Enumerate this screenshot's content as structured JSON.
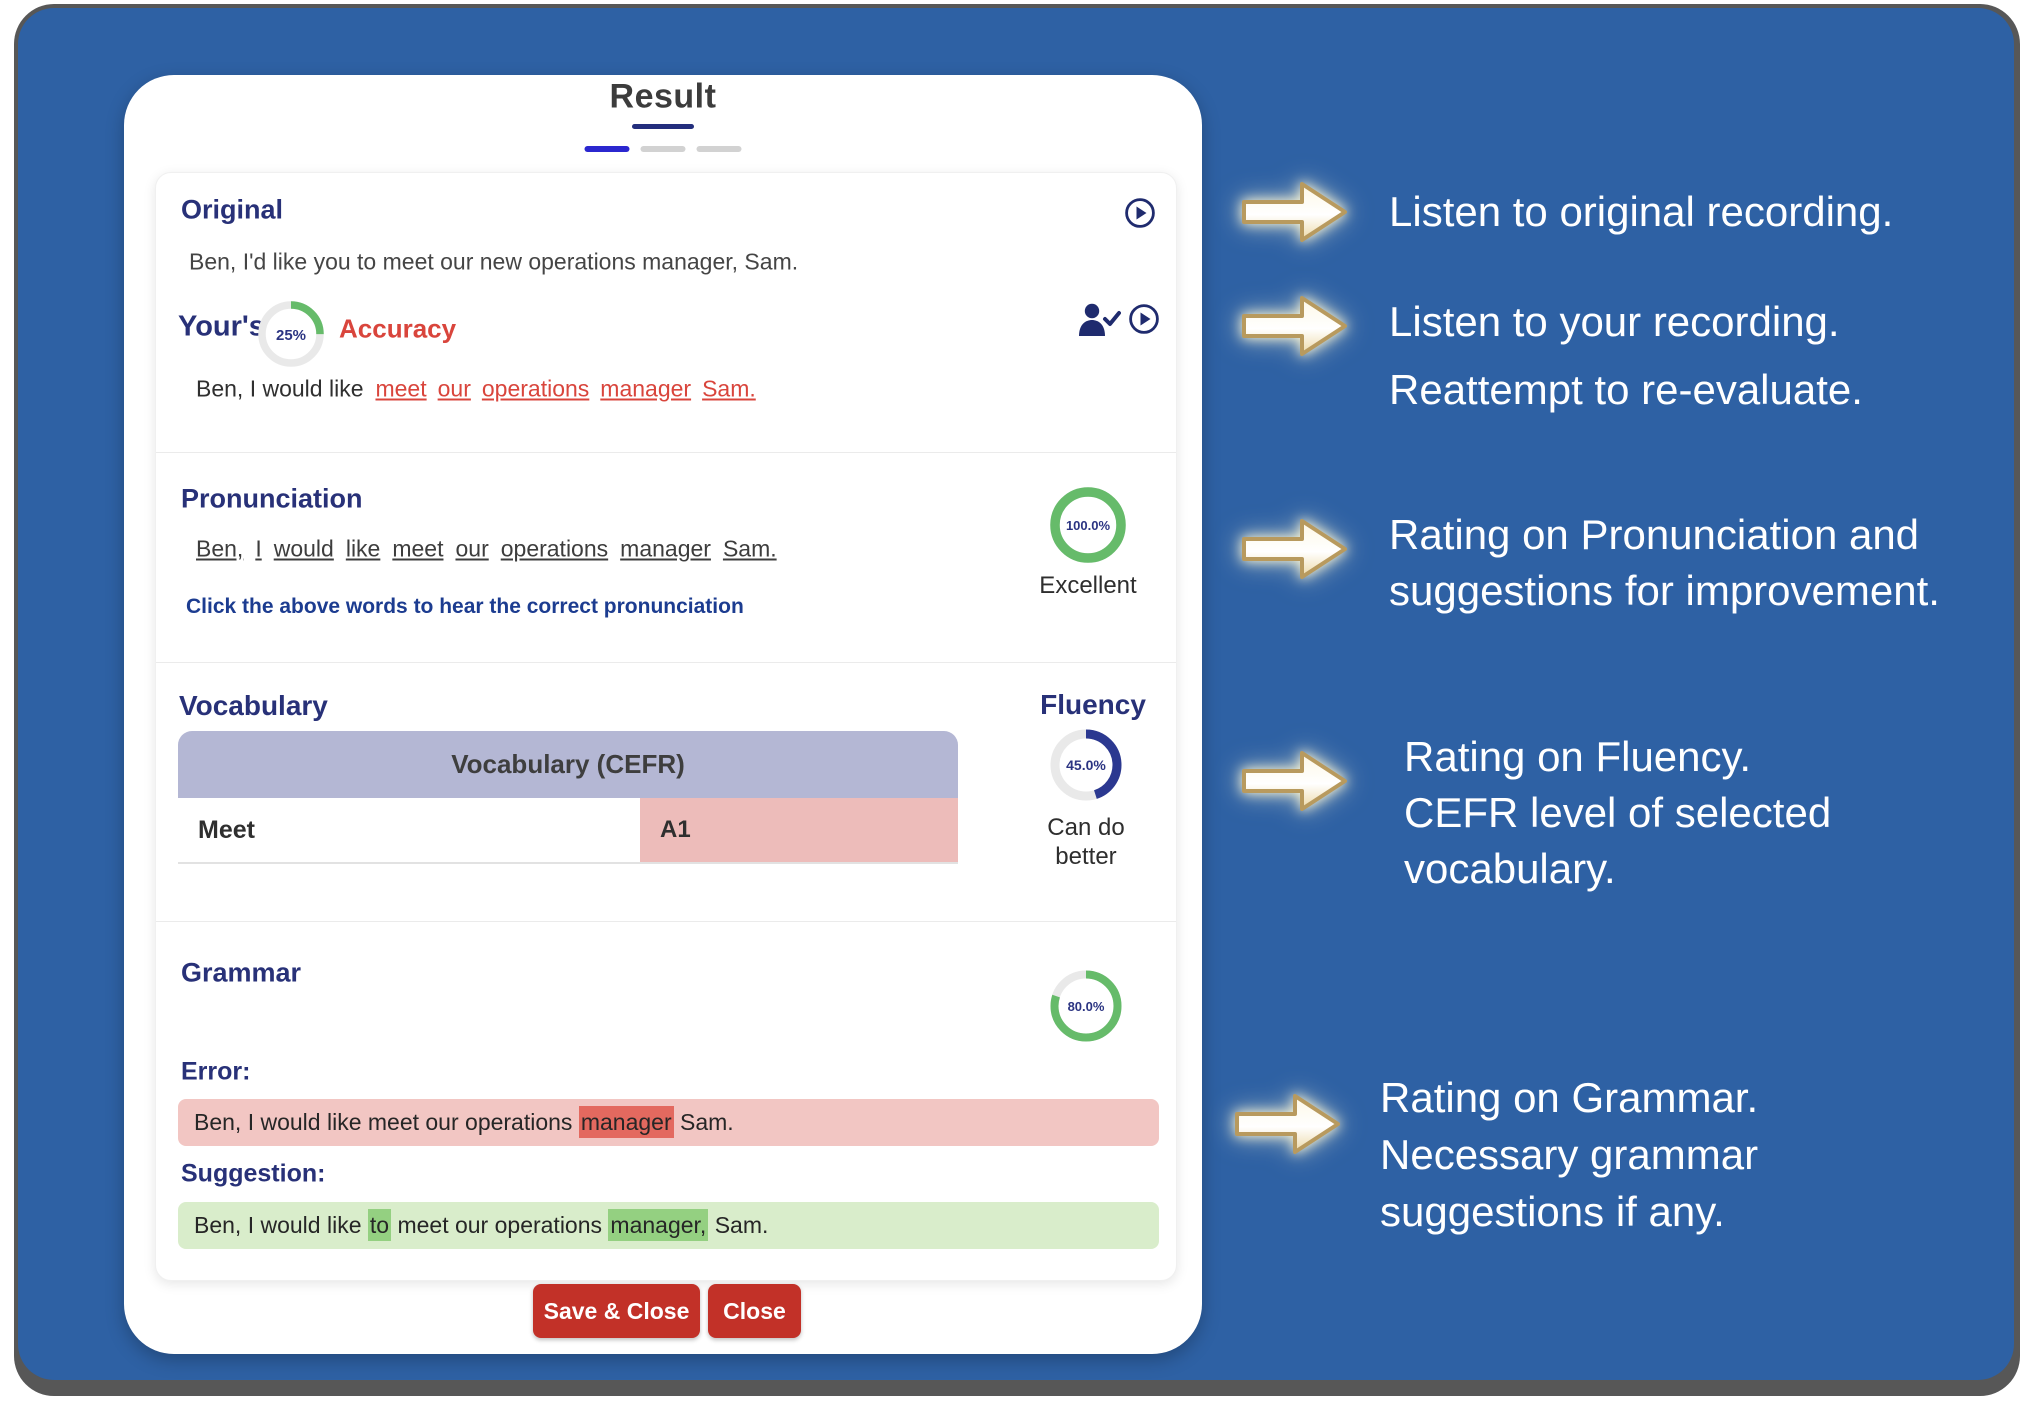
{
  "window": {
    "title": "Result"
  },
  "colors": {
    "panel_blue": "#2e61a4",
    "heading_navy": "#283178",
    "accent_red": "#d9453c",
    "ring_green": "#66bb6a",
    "ring_navy": "#2b3890",
    "table_header_bg": "#b4b7d4",
    "level_cell_bg": "#edbcba",
    "error_box_bg": "#f2c6c3",
    "error_highlight": "#e3695f",
    "suggestion_box_bg": "#d9edcb",
    "suggestion_highlight": "#94d081",
    "button_red": "#c23128"
  },
  "card": {
    "original": {
      "heading": "Original",
      "sentence": "Ben, I'd like you to meet our new operations manager, Sam."
    },
    "yours": {
      "heading": "Your's",
      "accuracy_label": "Accuracy",
      "ring_label": "25%",
      "percent": 25,
      "sentence_prefix": "Ben, I would like",
      "error_words": [
        "meet",
        "our",
        "operations",
        "manager",
        "Sam."
      ]
    },
    "pronunciation": {
      "heading": "Pronunciation",
      "words": [
        "Ben,",
        "I",
        "would",
        "like",
        "meet",
        "our",
        "operations",
        "manager",
        "Sam."
      ],
      "note": "Click the above words to hear the correct pronunciation",
      "percent": 100,
      "ring_label": "100.0%",
      "caption": "Excellent"
    },
    "vocabulary": {
      "heading": "Vocabulary",
      "table_header": "Vocabulary (CEFR)",
      "rows": [
        {
          "word": "Meet",
          "level": "A1"
        }
      ]
    },
    "fluency": {
      "heading": "Fluency",
      "percent": 45,
      "ring_label": "45.0%",
      "caption_lines": [
        "Can do",
        "better"
      ]
    },
    "grammar": {
      "heading": "Grammar",
      "percent": 80,
      "ring_label": "80.0%",
      "error_label": "Error:",
      "error": {
        "pre": "Ben, I would like meet our operations ",
        "highlight": "manager",
        "post": " Sam."
      },
      "suggestion_label": "Suggestion:",
      "suggestion": {
        "p1": "Ben, I would like ",
        "hl1": "to",
        "p2": " meet our operations ",
        "hl2": "manager,",
        "p3": " Sam."
      }
    },
    "buttons": {
      "save_close": "Save & Close",
      "close": "Close"
    }
  },
  "annotations": [
    {
      "lines": [
        "Listen to original recording."
      ]
    },
    {
      "lines": [
        "Listen to your recording.",
        "Reattempt to re-evaluate."
      ]
    },
    {
      "lines": [
        "Rating on Pronunciation and",
        "suggestions for improvement."
      ]
    },
    {
      "lines": [
        "Rating on Fluency.",
        "CEFR level of selected",
        "vocabulary."
      ]
    },
    {
      "lines": [
        "Rating on Grammar.",
        "Necessary grammar",
        "suggestions if any."
      ]
    }
  ]
}
